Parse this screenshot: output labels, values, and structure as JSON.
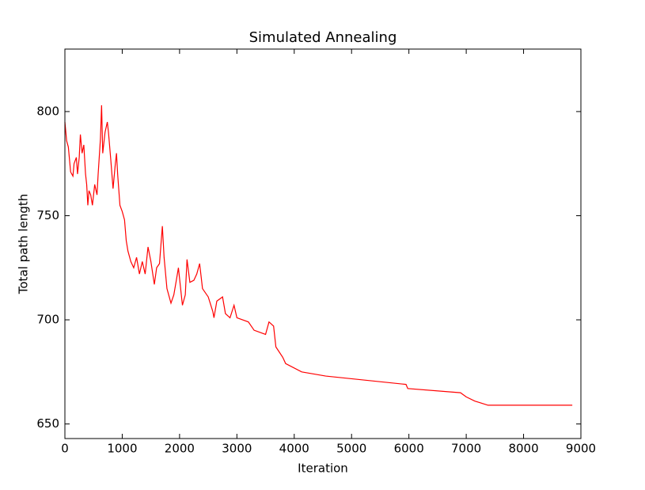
{
  "chart_data": {
    "type": "line",
    "title": "Simulated Annealing",
    "xlabel": "Iteration",
    "ylabel": "Total path length",
    "x": [
      0,
      30,
      60,
      100,
      140,
      160,
      200,
      220,
      250,
      270,
      300,
      330,
      360,
      380,
      400,
      420,
      450,
      480,
      520,
      560,
      580,
      620,
      640,
      660,
      700,
      740,
      760,
      800,
      840,
      880,
      900,
      920,
      960,
      1000,
      1040,
      1070,
      1100,
      1150,
      1200,
      1250,
      1300,
      1350,
      1400,
      1450,
      1500,
      1560,
      1600,
      1650,
      1700,
      1730,
      1780,
      1850,
      1900,
      1950,
      1980,
      2050,
      2100,
      2130,
      2180,
      2250,
      2300,
      2350,
      2400,
      2500,
      2580,
      2600,
      2650,
      2750,
      2800,
      2880,
      2950,
      3000,
      3200,
      3300,
      3500,
      3560,
      3640,
      3680,
      3800,
      3850,
      4130,
      4550,
      5950,
      5980,
      6900,
      7000,
      7150,
      7380,
      8850
    ],
    "series": [
      {
        "name": "Total path length",
        "color": "#ff0000",
        "values": [
          795,
          786,
          783,
          771,
          769,
          775,
          778,
          770,
          778,
          789,
          780,
          784,
          770,
          765,
          755,
          762,
          760,
          755,
          765,
          760,
          770,
          787,
          803,
          780,
          790,
          795,
          790,
          777,
          763,
          775,
          780,
          770,
          755,
          752,
          748,
          738,
          733,
          728,
          725,
          730,
          722,
          728,
          722,
          735,
          728,
          717,
          725,
          727,
          745,
          730,
          715,
          708,
          712,
          720,
          725,
          707,
          712,
          729,
          718,
          719,
          722,
          727,
          715,
          711,
          704,
          701,
          709,
          711,
          703,
          701,
          707,
          701,
          699,
          695,
          693,
          699,
          697,
          687,
          682,
          679,
          675,
          673,
          669,
          667,
          665,
          663,
          661,
          659,
          659
        ]
      }
    ],
    "xlim": [
      0,
      9000
    ],
    "xticks": [
      0,
      1000,
      2000,
      3000,
      4000,
      5000,
      6000,
      7000,
      8000,
      9000
    ],
    "ylim": [
      643,
      830
    ],
    "yticks": [
      650,
      700,
      750,
      800
    ]
  }
}
